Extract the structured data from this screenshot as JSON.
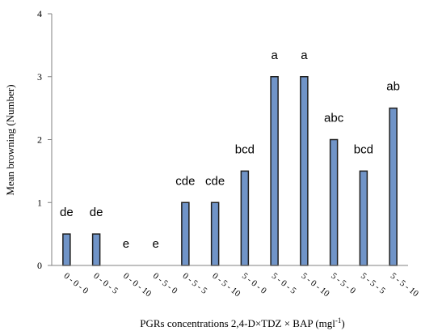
{
  "chart_data": {
    "type": "bar",
    "title": "",
    "xlabel": "PGRs concentrations 2,4-D×TDZ × BAP (mgl",
    "xlabel_sup": "-1",
    "xlabel_suffix": ")",
    "ylabel": "Mean browning  (Number)",
    "ylim": [
      0,
      4
    ],
    "yticks": [
      0,
      1,
      2,
      3,
      4
    ],
    "grid": false,
    "categories": [
      "0 - 0 - 0",
      "0 - 0 - 5",
      "0 - 0 - 10",
      "0 - 5 - 0",
      "0 - 5 - 5",
      "0 - 5 - 10",
      "5 - 0 - 0",
      "5 - 0 - 5",
      "5 - 0 - 10",
      "5 - 5 - 0",
      "5 - 5 - 5",
      "5 - 5 - 10"
    ],
    "values": [
      0.5,
      0.5,
      0,
      0,
      1,
      1,
      1.5,
      3,
      3,
      2,
      1.5,
      2.5
    ],
    "significance_letters": [
      "de",
      "de",
      "e",
      "e",
      "cde",
      "cde",
      "bcd",
      "a",
      "a",
      "abc",
      "bcd",
      "ab"
    ],
    "bar_color": "#7094c8"
  }
}
